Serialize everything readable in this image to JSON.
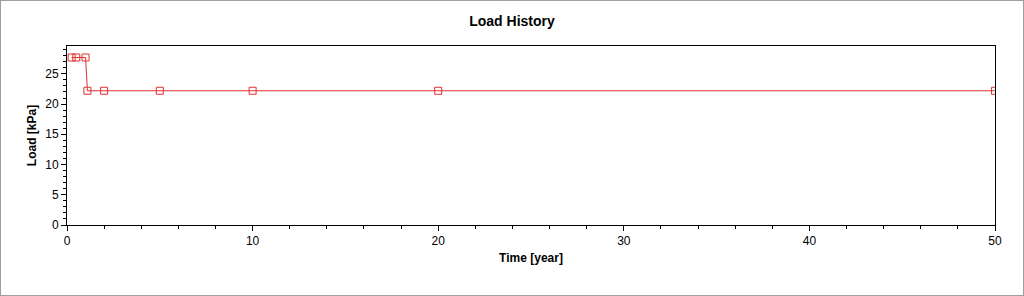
{
  "chart_data": {
    "type": "line",
    "title": "Load History",
    "x_label": "Time [year]",
    "y_label": "Load [kPa]",
    "x": [
      0.25,
      0.5,
      1,
      1.1,
      2,
      5,
      10,
      20,
      50
    ],
    "values": [
      27.7,
      27.7,
      27.7,
      22.2,
      22.2,
      22.2,
      22.2,
      22.2,
      22.2
    ],
    "color": "#e03030",
    "marker": "square-open",
    "line_style": "solid",
    "xlim": [
      0,
      50
    ],
    "xticks": [
      0,
      10,
      20,
      30,
      40,
      50
    ],
    "ylim": [
      0,
      29.6
    ],
    "yticks": [
      0,
      5,
      10,
      15,
      20,
      25
    ],
    "grid": false
  }
}
